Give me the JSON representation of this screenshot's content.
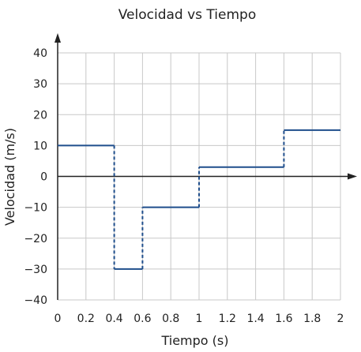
{
  "chart_data": {
    "type": "line",
    "title": "Velocidad vs Tiempo",
    "xlabel": "Tiempo (s)",
    "ylabel": "Velocidad (m/s)",
    "xlim": [
      0,
      2
    ],
    "ylim": [
      -40,
      40
    ],
    "grid": true,
    "x_ticks": [
      "0",
      "0.2",
      "0.4",
      "0.6",
      "0.8",
      "1",
      "1.2",
      "1.4",
      "1.6",
      "1.8",
      "2"
    ],
    "y_ticks": [
      "40",
      "30",
      "20",
      "10",
      "0",
      "-10",
      "-20",
      "-30",
      "-40"
    ],
    "series": [
      {
        "values": [
          {
            "x_start": 0,
            "x_end": 0.4,
            "y": 10
          },
          {
            "x_start": 0.4,
            "x_end": 0.6,
            "y": -30
          },
          {
            "x_start": 0.6,
            "x_end": 1.0,
            "y": -10
          },
          {
            "x_start": 1.0,
            "x_end": 1.6,
            "y": 3
          },
          {
            "x_start": 1.6,
            "x_end": 2.0,
            "y": 15
          }
        ]
      }
    ],
    "line_color": "#1f4e8c",
    "grid_color": "#c8c8c8",
    "axis_color": "#222222"
  }
}
